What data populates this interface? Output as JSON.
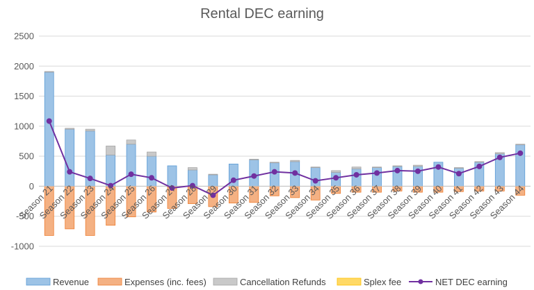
{
  "chart_data": {
    "type": "bar",
    "title": "Rental DEC earning",
    "xlabel": "",
    "ylabel": "",
    "ylim": [
      -1000,
      2500
    ],
    "yticks": [
      -1000,
      -500,
      0,
      500,
      1000,
      1500,
      2000,
      2500
    ],
    "grid": true,
    "stacked": true,
    "legend_position": "bottom",
    "categories": [
      "Season 21",
      "Season 22",
      "Season 23",
      "Season 24",
      "Season 25",
      "Season 26",
      "Season 27",
      "Season 28",
      "Season 29",
      "Season 30",
      "Season 31",
      "Season 32",
      "Season 33",
      "Season 34",
      "Season 35",
      "Season 36",
      "Season 37",
      "Season 38",
      "Season 39",
      "Season 40",
      "Season 41",
      "Season 42",
      "Season 43",
      "Season 44"
    ],
    "series": [
      {
        "name": "Revenue",
        "type": "bar",
        "color": "#9dc3e6",
        "edge": "#5b9bd5",
        "values": [
          1900,
          950,
          920,
          520,
          700,
          500,
          340,
          270,
          190,
          370,
          440,
          390,
          410,
          310,
          230,
          290,
          310,
          330,
          330,
          400,
          300,
          400,
          540,
          690
        ]
      },
      {
        "name": "Expenses (inc. fees)",
        "type": "bar",
        "color": "#f4b183",
        "edge": "#ed7d31",
        "values": [
          -820,
          -710,
          -820,
          -650,
          -510,
          -430,
          -370,
          -290,
          -340,
          -280,
          -270,
          -160,
          -190,
          -230,
          -120,
          -100,
          -100,
          -80,
          -100,
          -100,
          -90,
          -80,
          -80,
          -150
        ]
      },
      {
        "name": "Cancellation Refunds",
        "type": "bar",
        "color": "#c9c9c9",
        "edge": "#a5a5a5",
        "values": [
          10,
          15,
          30,
          150,
          70,
          70,
          0,
          40,
          10,
          0,
          10,
          10,
          20,
          10,
          30,
          30,
          10,
          10,
          20,
          0,
          10,
          10,
          20,
          10
        ]
      },
      {
        "name": "Splex fee",
        "type": "bar",
        "color": "#ffd966",
        "edge": "#ffc000",
        "values": [
          0,
          0,
          0,
          0,
          0,
          0,
          0,
          0,
          0,
          0,
          0,
          0,
          0,
          0,
          0,
          0,
          0,
          0,
          0,
          0,
          0,
          0,
          0,
          0
        ]
      },
      {
        "name": "NET DEC earning",
        "type": "line",
        "color": "#7030a0",
        "values": [
          1085,
          240,
          130,
          10,
          200,
          140,
          -30,
          10,
          -150,
          100,
          170,
          240,
          220,
          90,
          140,
          190,
          220,
          260,
          250,
          320,
          210,
          330,
          480,
          550
        ]
      }
    ]
  }
}
